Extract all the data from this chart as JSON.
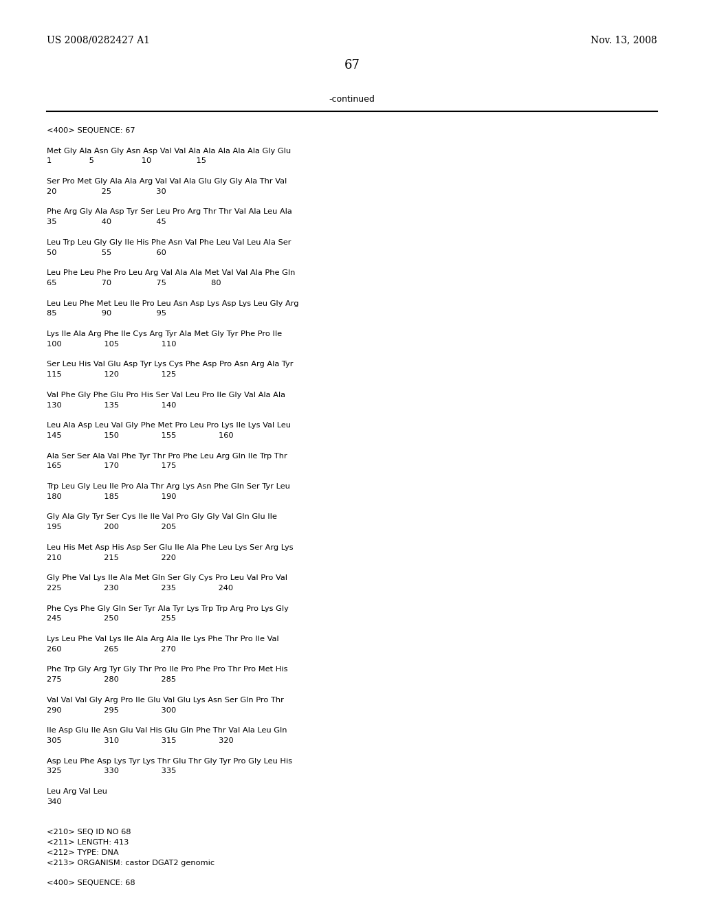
{
  "header_left": "US 2008/0282427 A1",
  "header_right": "Nov. 13, 2008",
  "page_number": "67",
  "continued_text": "-continued",
  "background_color": "#ffffff",
  "text_color": "#000000",
  "content_lines": [
    "<400> SEQUENCE: 67",
    "",
    "Met Gly Ala Asn Gly Asn Asp Val Val Ala Ala Ala Ala Ala Gly Glu",
    "1               5                   10                  15",
    "",
    "Ser Pro Met Gly Ala Ala Arg Val Val Ala Glu Gly Gly Ala Thr Val",
    "20                  25                  30",
    "",
    "Phe Arg Gly Ala Asp Tyr Ser Leu Pro Arg Thr Thr Val Ala Leu Ala",
    "35                  40                  45",
    "",
    "Leu Trp Leu Gly Gly Ile His Phe Asn Val Phe Leu Val Leu Ala Ser",
    "50                  55                  60",
    "",
    "Leu Phe Leu Phe Pro Leu Arg Val Ala Ala Met Val Val Ala Phe Gln",
    "65                  70                  75                  80",
    "",
    "Leu Leu Phe Met Leu Ile Pro Leu Asn Asp Lys Asp Lys Leu Gly Arg",
    "85                  90                  95",
    "",
    "Lys Ile Ala Arg Phe Ile Cys Arg Tyr Ala Met Gly Tyr Phe Pro Ile",
    "100                 105                 110",
    "",
    "Ser Leu His Val Glu Asp Tyr Lys Cys Phe Asp Pro Asn Arg Ala Tyr",
    "115                 120                 125",
    "",
    "Val Phe Gly Phe Glu Pro His Ser Val Leu Pro Ile Gly Val Ala Ala",
    "130                 135                 140",
    "",
    "Leu Ala Asp Leu Val Gly Phe Met Pro Leu Pro Lys Ile Lys Val Leu",
    "145                 150                 155                 160",
    "",
    "Ala Ser Ser Ala Val Phe Tyr Thr Pro Phe Leu Arg Gln Ile Trp Thr",
    "165                 170                 175",
    "",
    "Trp Leu Gly Leu Ile Pro Ala Thr Arg Lys Asn Phe Gln Ser Tyr Leu",
    "180                 185                 190",
    "",
    "Gly Ala Gly Tyr Ser Cys Ile Ile Val Pro Gly Gly Val Gln Glu Ile",
    "195                 200                 205",
    "",
    "Leu His Met Asp His Asp Ser Glu Ile Ala Phe Leu Lys Ser Arg Lys",
    "210                 215                 220",
    "",
    "Gly Phe Val Lys Ile Ala Met Gln Ser Gly Cys Pro Leu Val Pro Val",
    "225                 230                 235                 240",
    "",
    "Phe Cys Phe Gly Gln Ser Tyr Ala Tyr Lys Trp Trp Arg Pro Lys Gly",
    "245                 250                 255",
    "",
    "Lys Leu Phe Val Lys Ile Ala Arg Ala Ile Lys Phe Thr Pro Ile Val",
    "260                 265                 270",
    "",
    "Phe Trp Gly Arg Tyr Gly Thr Pro Ile Pro Phe Pro Thr Pro Met His",
    "275                 280                 285",
    "",
    "Val Val Val Gly Arg Pro Ile Glu Val Glu Lys Asn Ser Gln Pro Thr",
    "290                 295                 300",
    "",
    "Ile Asp Glu Ile Asn Glu Val His Glu Gln Phe Thr Val Ala Leu Gln",
    "305                 310                 315                 320",
    "",
    "Asp Leu Phe Asp Lys Tyr Lys Thr Glu Thr Gly Tyr Pro Gly Leu His",
    "325                 330                 335",
    "",
    "Leu Arg Val Leu",
    "340",
    "",
    "",
    "<210> SEQ ID NO 68",
    "<211> LENGTH: 413",
    "<212> TYPE: DNA",
    "<213> ORGANISM: castor DGAT2 genomic",
    "",
    "<400> SEQUENCE: 68"
  ],
  "fig_width": 10.24,
  "fig_height": 13.2,
  "dpi": 100
}
